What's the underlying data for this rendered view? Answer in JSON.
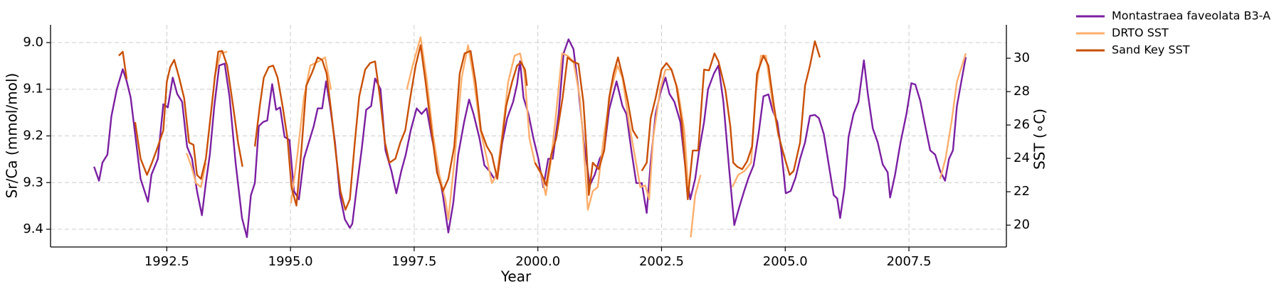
{
  "chart_data": {
    "type": "line",
    "x_label": "Year",
    "y_label": "Sr/Ca (mmol/mol)",
    "y2_label": "SST (∘C)",
    "xlim": [
      1990.15,
      2009.47
    ],
    "xticks": [
      1992.5,
      {
        "value": 1995.0,
        "label": "1995.0"
      },
      1997.5,
      {
        "value": 2000.0,
        "label": "2000.0"
      },
      2002.5,
      {
        "value": 2005.0,
        "label": "2005.0"
      },
      2007.5
    ],
    "ylim": [
      8.962,
      9.438
    ],
    "y_inverted": true,
    "yticks": [
      {
        "value": 9.0,
        "label": "9.0"
      },
      9.1,
      9.2,
      9.3,
      9.4
    ],
    "y2lim": [
      18.69,
      32.0
    ],
    "y2ticks": [
      20,
      22,
      24,
      26,
      28,
      30
    ],
    "grid": true,
    "legend": "outside upper right",
    "series": [
      {
        "name": "Montastraea faveolata B3-A",
        "color": "#7b1fa2",
        "axis": "y",
        "x": [
          1991.03,
          1991.13,
          1991.2,
          1991.3,
          1991.38,
          1991.49,
          1991.61,
          1991.69,
          1991.77,
          1991.87,
          1991.97,
          1992.12,
          1992.19,
          1992.32,
          1992.43,
          1992.52,
          1992.62,
          1992.71,
          1992.81,
          1992.91,
          1993.01,
          1993.11,
          1993.21,
          1993.29,
          1993.37,
          1993.46,
          1993.56,
          1993.67,
          1993.77,
          1993.89,
          1994.02,
          1994.12,
          1994.2,
          1994.28,
          1994.36,
          1994.45,
          1994.53,
          1994.63,
          1994.71,
          1994.79,
          1994.88,
          1994.98,
          1995.07,
          1995.17,
          1995.27,
          1995.37,
          1995.47,
          1995.55,
          1995.64,
          1995.72,
          1995.8,
          1995.9,
          1996.0,
          1996.1,
          1996.2,
          1996.25,
          1996.34,
          1996.44,
          1996.53,
          1996.63,
          1996.71,
          1996.82,
          1996.92,
          1997.04,
          1997.14,
          1997.24,
          1997.33,
          1997.43,
          1997.55,
          1997.65,
          1997.75,
          1997.86,
          1997.96,
          1998.08,
          1998.19,
          1998.29,
          1998.39,
          1998.51,
          1998.61,
          1998.7,
          1998.82,
          1998.92,
          1999.02,
          1999.12,
          1999.2,
          1999.28,
          1999.38,
          1999.5,
          1999.58,
          1999.64,
          1999.71,
          1999.81,
          1999.91,
          2000.01,
          2000.11,
          2000.21,
          2000.3,
          2000.42,
          2000.52,
          2000.62,
          2000.72,
          2000.82,
          2000.93,
          2001.05,
          2001.15,
          2001.25,
          2001.34,
          2001.44,
          2001.59,
          2001.71,
          2001.79,
          2001.89,
          2001.99,
          2002.1,
          2002.2,
          2002.28,
          2002.38,
          2002.48,
          2002.58,
          2002.66,
          2002.76,
          2002.88,
          2002.98,
          2003.08,
          2003.18,
          2003.26,
          2003.36,
          2003.44,
          2003.56,
          2003.65,
          2003.75,
          2003.87,
          2003.97,
          2004.07,
          2004.17,
          2004.26,
          2004.36,
          2004.46,
          2004.56,
          2004.66,
          2004.74,
          2004.84,
          2004.92,
          2005.01,
          2005.11,
          2005.21,
          2005.3,
          2005.4,
          2005.5,
          2005.6,
          2005.68,
          2005.78,
          2005.9,
          2005.98,
          2006.05,
          2006.11,
          2006.2,
          2006.28,
          2006.38,
          2006.48,
          2006.59,
          2006.67,
          2006.77,
          2006.87,
          2006.97,
          2007.07,
          2007.12,
          2007.22,
          2007.33,
          2007.45,
          2007.55,
          2007.63,
          2007.73,
          2007.83,
          2007.93,
          2008.03,
          2008.13,
          2008.23,
          2008.31,
          2008.39,
          2008.47,
          2008.56,
          2008.65
        ],
        "values": [
          9.266,
          9.296,
          9.257,
          9.24,
          9.158,
          9.1,
          9.057,
          9.083,
          9.118,
          9.205,
          9.292,
          9.341,
          9.283,
          9.249,
          9.132,
          9.139,
          9.075,
          9.11,
          9.127,
          9.223,
          9.249,
          9.318,
          9.37,
          9.3,
          9.24,
          9.136,
          9.049,
          9.045,
          9.118,
          9.257,
          9.376,
          9.417,
          9.327,
          9.301,
          9.179,
          9.17,
          9.167,
          9.089,
          9.144,
          9.139,
          9.202,
          9.209,
          9.318,
          9.336,
          9.249,
          9.214,
          9.179,
          9.141,
          9.141,
          9.083,
          9.136,
          9.214,
          9.327,
          9.379,
          9.397,
          9.388,
          9.31,
          9.228,
          9.144,
          9.136,
          9.077,
          9.1,
          9.231,
          9.275,
          9.323,
          9.275,
          9.24,
          9.188,
          9.141,
          9.153,
          9.141,
          9.205,
          9.257,
          9.327,
          9.407,
          9.344,
          9.24,
          9.17,
          9.122,
          9.153,
          9.205,
          9.263,
          9.275,
          9.292,
          9.275,
          9.214,
          9.162,
          9.127,
          9.089,
          9.04,
          9.118,
          9.153,
          9.205,
          9.249,
          9.31,
          9.249,
          9.249,
          9.153,
          9.023,
          8.993,
          9.014,
          9.1,
          9.214,
          9.306,
          9.283,
          9.249,
          9.231,
          9.144,
          9.083,
          9.136,
          9.153,
          9.231,
          9.301,
          9.301,
          9.365,
          9.257,
          9.153,
          9.106,
          9.075,
          9.11,
          9.127,
          9.17,
          9.266,
          9.336,
          9.292,
          9.231,
          9.17,
          9.1,
          9.066,
          9.049,
          9.127,
          9.275,
          9.391,
          9.353,
          9.318,
          9.289,
          9.263,
          9.196,
          9.115,
          9.111,
          9.144,
          9.17,
          9.231,
          9.323,
          9.318,
          9.289,
          9.249,
          9.214,
          9.157,
          9.155,
          9.162,
          9.196,
          9.275,
          9.327,
          9.334,
          9.376,
          9.31,
          9.202,
          9.153,
          9.127,
          9.038,
          9.11,
          9.184,
          9.214,
          9.261,
          9.278,
          9.332,
          9.283,
          9.214,
          9.153,
          9.087,
          9.09,
          9.125,
          9.179,
          9.231,
          9.24,
          9.275,
          9.296,
          9.249,
          9.231,
          9.136,
          9.083,
          9.031
        ]
      },
      {
        "name": "DRTO SST",
        "color": "#fdae6b",
        "axis": "y2",
        "x": [
          1992.9,
          1993.0,
          1993.09,
          1993.19,
          1993.29,
          null,
          1993.46,
          1993.59,
          1993.72,
          null,
          1995.01,
          1995.14,
          1995.27,
          1995.4,
          1995.57,
          1995.7,
          1995.82,
          null,
          1997.35,
          1997.47,
          1997.63,
          1997.75,
          1997.88,
          1998.01,
          1998.13,
          1998.19,
          1998.31,
          1998.46,
          1998.59,
          1998.7,
          1998.84,
          1998.97,
          1999.07,
          1999.17,
          1999.28,
          1999.4,
          1999.53,
          1999.64,
          1999.73,
          1999.83,
          1999.94,
          2000.07,
          2000.16,
          2000.26,
          2000.35,
          2000.49,
          2000.6,
          2000.72,
          2000.85,
          2000.92,
          2001.01,
          2001.11,
          2001.21,
          2001.34,
          2001.48,
          2001.61,
          2001.71,
          2001.84,
          2001.97,
          2002.07,
          2002.17,
          2002.25,
          2002.33,
          2002.47,
          2002.58,
          2002.7,
          2002.83,
          2002.96,
          2003.04,
          null,
          2003.09,
          2003.18,
          2003.29,
          null,
          2003.93,
          2004.05,
          2004.18,
          2004.31,
          2004.41,
          2004.51,
          2004.61,
          2004.74,
          2004.86,
          null,
          2008.13,
          2008.24,
          2008.36,
          2008.47,
          2008.65
        ],
        "values": [
          24.32,
          23.5,
          22.52,
          22.28,
          23.74,
          null,
          28.83,
          30.29,
          30.39,
          null,
          21.31,
          24.22,
          27.62,
          29.56,
          29.81,
          30.05,
          28.11,
          null,
          28.11,
          29.56,
          31.26,
          28.83,
          25.44,
          23.01,
          21.55,
          20.34,
          23.74,
          28.83,
          30.78,
          28.83,
          25.68,
          23.98,
          22.52,
          23.01,
          25.44,
          28.59,
          30.15,
          30.29,
          29.08,
          25.19,
          23.74,
          23.01,
          21.8,
          23.74,
          26.17,
          30.29,
          30.15,
          29.81,
          27.62,
          24.95,
          20.92,
          22.04,
          22.28,
          25.44,
          28.11,
          29.56,
          28.83,
          26.17,
          23.98,
          22.28,
          22.38,
          21.55,
          25.19,
          28.11,
          29.32,
          29.32,
          28.11,
          25.68,
          22.28,
          null,
          19.27,
          21.8,
          23.01,
          null,
          22.28,
          23.01,
          23.25,
          23.74,
          28.11,
          30.15,
          30.15,
          27.38,
          25.44,
          null,
          22.77,
          23.98,
          26.17,
          28.59,
          30.29
        ]
      },
      {
        "name": "Sand Key SST",
        "color": "#c94f05",
        "axis": "y2",
        "x": [
          1991.53,
          1991.61,
          1991.69,
          null,
          1991.86,
          1991.97,
          1992.1,
          1992.2,
          1992.32,
          1992.43,
          1992.5,
          1992.57,
          1992.65,
          1992.75,
          1992.85,
          1992.95,
          1993.04,
          1993.11,
          1993.19,
          1993.29,
          1993.39,
          1993.47,
          1993.54,
          1993.62,
          1993.72,
          1993.84,
          1993.94,
          1994.03,
          null,
          1994.28,
          1994.38,
          1994.46,
          1994.56,
          1994.65,
          1994.74,
          1994.84,
          1994.94,
          1995.02,
          1995.12,
          1995.22,
          1995.32,
          1995.44,
          1995.55,
          1995.64,
          1995.73,
          1995.83,
          1995.92,
          1996.01,
          1996.11,
          1996.2,
          1996.3,
          1996.39,
          1996.51,
          1996.61,
          1996.71,
          1996.81,
          1996.91,
          1997.0,
          1997.12,
          1997.22,
          1997.32,
          1997.42,
          1997.53,
          1997.63,
          1997.73,
          1997.85,
          1997.96,
          1998.08,
          1998.19,
          1998.31,
          1998.42,
          1998.52,
          1998.64,
          1998.74,
          1998.85,
          1998.97,
          1999.07,
          1999.18,
          1999.27,
          1999.36,
          1999.48,
          1999.58,
          1999.66,
          1999.74,
          1999.78,
          null,
          1999.94,
          2000.06,
          2000.17,
          2000.27,
          2000.37,
          2000.5,
          2000.6,
          2000.7,
          2000.82,
          2000.92,
          2000.98,
          2001.03,
          2001.11,
          2001.23,
          2001.34,
          2001.44,
          2001.53,
          2001.62,
          2001.72,
          2001.82,
          2001.92,
          2002.02,
          null,
          2002.1,
          2002.2,
          2002.28,
          2002.38,
          2002.5,
          2002.6,
          2002.7,
          2002.8,
          2002.91,
          2003.03,
          2003.13,
          2003.24,
          2003.36,
          2003.46,
          2003.57,
          2003.65,
          2003.79,
          2003.89,
          2003.95,
          2004.03,
          2004.13,
          2004.23,
          2004.33,
          2004.43,
          2004.56,
          2004.66,
          2004.76,
          2004.86,
          2004.97,
          2005.09,
          2005.17,
          2005.3,
          2005.4,
          2005.5,
          2005.6,
          2005.7
        ],
        "values": [
          30.15,
          30.39,
          28.74,
          null,
          26.17,
          23.98,
          23.01,
          23.74,
          24.71,
          25.68,
          28.59,
          29.47,
          29.9,
          28.83,
          27.62,
          24.95,
          24.81,
          23.01,
          22.77,
          23.98,
          26.65,
          28.83,
          30.39,
          30.44,
          29.56,
          27.14,
          24.95,
          23.5,
          null,
          24.71,
          27.14,
          28.83,
          29.47,
          29.56,
          28.83,
          27.14,
          25.19,
          22.28,
          21.17,
          24.47,
          28.35,
          29.17,
          30.05,
          29.9,
          29.08,
          26.65,
          24.22,
          22.04,
          20.92,
          21.55,
          24.95,
          27.72,
          29.32,
          29.71,
          29.81,
          27.62,
          24.95,
          23.74,
          23.98,
          24.95,
          25.68,
          27.62,
          29.56,
          30.78,
          28.59,
          25.68,
          23.16,
          22.04,
          22.77,
          24.71,
          29.08,
          30.29,
          30.44,
          28.59,
          25.68,
          24.71,
          24.22,
          22.77,
          24.95,
          27.14,
          28.59,
          29.56,
          29.76,
          29.32,
          28.35,
          null,
          23.74,
          23.16,
          22.38,
          24.22,
          25.19,
          27.62,
          30.05,
          29.81,
          29.66,
          27.38,
          24.71,
          21.8,
          23.74,
          23.35,
          24.47,
          27.62,
          29.08,
          30.05,
          28.83,
          27.38,
          25.68,
          25.19,
          null,
          23.25,
          23.74,
          26.41,
          27.62,
          29.32,
          29.71,
          29.32,
          28.35,
          26.17,
          21.55,
          24.47,
          24.47,
          29.32,
          29.27,
          30.29,
          29.81,
          28.11,
          25.92,
          23.74,
          23.5,
          23.35,
          23.83,
          24.71,
          29.08,
          30.15,
          29.56,
          27.38,
          25.44,
          24.22,
          23.01,
          23.25,
          24.95,
          28.35,
          29.56,
          31.02,
          30.05
        ]
      }
    ]
  }
}
